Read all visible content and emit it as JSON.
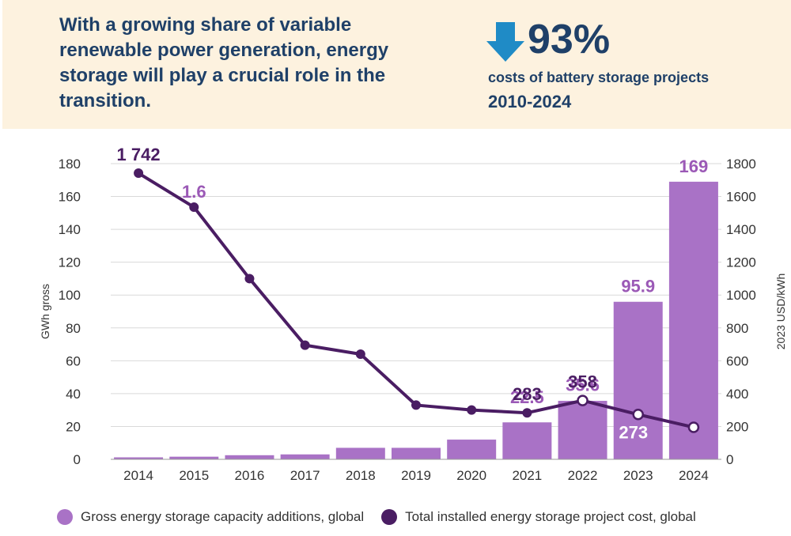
{
  "header": {
    "headline": "With a growing share of variable renewable power generation, energy storage will play a crucial role in the transition.",
    "stat_value": "93%",
    "stat_caption": "costs of battery storage projects",
    "stat_period": "2010-2024",
    "stat_icon": "down-arrow-icon",
    "accent_color": "#1f8bc6",
    "text_color": "#1f4068",
    "background_color": "#fdf2df"
  },
  "chart_data": {
    "type": "bar",
    "categories": [
      "2014",
      "2015",
      "2016",
      "2017",
      "2018",
      "2019",
      "2020",
      "2021",
      "2022",
      "2023",
      "2024"
    ],
    "series": [
      {
        "name": "Gross energy storage capacity additions, global",
        "kind": "bar",
        "axis": "left",
        "color": "#a972c6",
        "values": [
          1.2,
          1.6,
          2.5,
          3.0,
          7.0,
          7.0,
          12.0,
          22.5,
          35.6,
          95.9,
          169
        ],
        "labels": [
          "",
          "1.6",
          "",
          "",
          "",
          "",
          "",
          "22.5",
          "35.6",
          "95.9",
          "169"
        ]
      },
      {
        "name": "Total installed energy storage project cost, global",
        "kind": "line",
        "axis": "right",
        "color": "#4a1d63",
        "values": [
          1742,
          1535,
          1100,
          695,
          640,
          330,
          300,
          283,
          358,
          273,
          195
        ],
        "labels": [
          "1 742",
          "",
          "",
          "",
          "",
          "",
          "",
          "283",
          "358",
          "273",
          ""
        ]
      }
    ],
    "ylabel": "GWh gross",
    "ylabel_right": "2023 USD/kWh",
    "ylim": [
      0,
      180
    ],
    "ylim_right": [
      0,
      1800
    ],
    "yticks": [
      0,
      20,
      40,
      60,
      80,
      100,
      120,
      140,
      160,
      180
    ],
    "yticks_right": [
      0,
      200,
      400,
      600,
      800,
      1000,
      1200,
      1400,
      1600,
      1800
    ],
    "grid": true,
    "legend_position": "bottom"
  }
}
